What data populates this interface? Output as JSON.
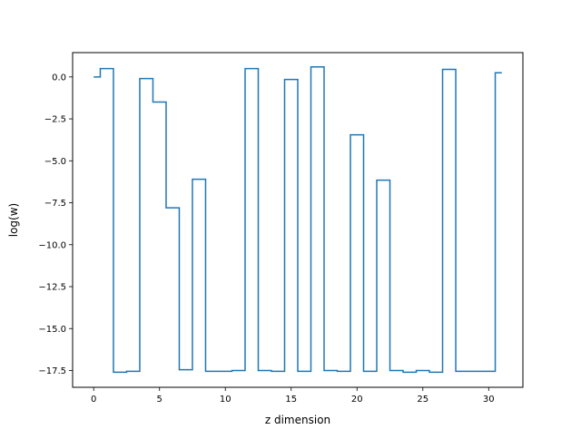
{
  "chart_data": {
    "type": "line",
    "drawstyle": "steps-mid",
    "title": "",
    "xlabel": "z dimension",
    "ylabel": "log(w)",
    "xlim": [
      -1.6,
      32.6
    ],
    "ylim": [
      -18.5,
      1.45
    ],
    "xticks": [
      0,
      5,
      10,
      15,
      20,
      25,
      30
    ],
    "xtick_labels": [
      "0",
      "5",
      "10",
      "15",
      "20",
      "25",
      "30"
    ],
    "yticks": [
      0.0,
      -2.5,
      -5.0,
      -7.5,
      -10.0,
      -12.5,
      -15.0,
      -17.5
    ],
    "ytick_labels": [
      "0.0",
      "−2.5",
      "−5.0",
      "−7.5",
      "−10.0",
      "−12.5",
      "−15.0",
      "−17.5"
    ],
    "grid": false,
    "legend": "none",
    "series": [
      {
        "color": "#1f77b4",
        "x": [
          0,
          1,
          2,
          3,
          4,
          5,
          6,
          7,
          8,
          9,
          10,
          11,
          12,
          13,
          14,
          15,
          16,
          17,
          18,
          19,
          20,
          21,
          22,
          23,
          24,
          25,
          26,
          27,
          28,
          29,
          30,
          31
        ],
        "y": [
          0.0,
          0.5,
          -17.6,
          -17.55,
          -0.1,
          -1.5,
          -7.8,
          -17.45,
          -6.1,
          -17.55,
          -17.55,
          -17.5,
          0.5,
          -17.5,
          -17.55,
          -0.15,
          -17.55,
          0.6,
          -17.5,
          -17.55,
          -3.45,
          -17.55,
          -6.15,
          -17.5,
          -17.6,
          -17.5,
          -17.6,
          0.45,
          -17.55,
          -17.55,
          -17.55,
          0.25
        ]
      }
    ]
  }
}
